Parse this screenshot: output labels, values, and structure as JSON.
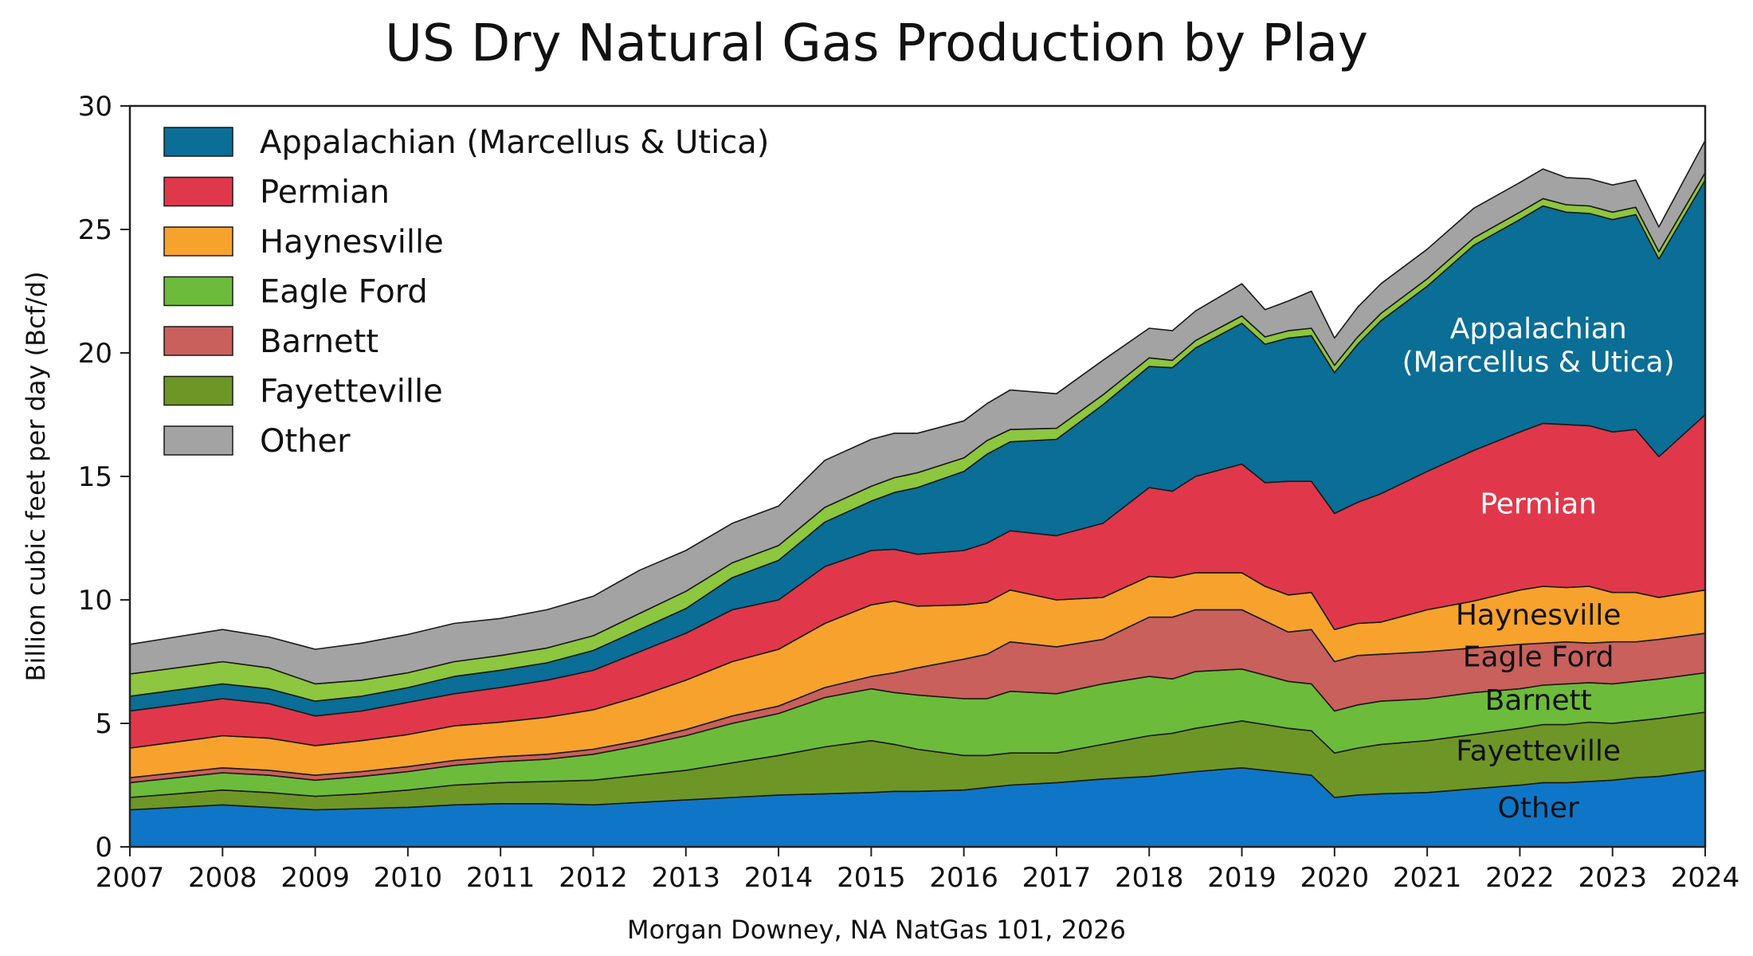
{
  "chart_data": {
    "type": "area",
    "stacked": true,
    "title": "US Dry Natural Gas Production by Play",
    "ylabel": "Billion cubic feet per day (Bcf/d)",
    "xlabel": "",
    "caption": "Morgan Downey, NA NatGas 101, 2026",
    "xlim": [
      2007,
      2024
    ],
    "ylim": [
      0,
      30
    ],
    "x_ticks": [
      2007,
      2008,
      2009,
      2010,
      2011,
      2012,
      2013,
      2014,
      2015,
      2016,
      2017,
      2018,
      2019,
      2020,
      2021,
      2022,
      2023,
      2024
    ],
    "y_ticks": [
      0,
      5,
      10,
      15,
      20,
      25,
      30
    ],
    "grid": false,
    "legend_position": "top-left",
    "x": [
      2007,
      2007.5,
      2008,
      2008.5,
      2009,
      2009.5,
      2010,
      2010.5,
      2011,
      2011.5,
      2012,
      2012.5,
      2013,
      2013.5,
      2014,
      2014.5,
      2015,
      2015.25,
      2015.5,
      2016,
      2016.25,
      2016.5,
      2017,
      2017.5,
      2018,
      2018.25,
      2018.5,
      2019,
      2019.25,
      2019.5,
      2019.75,
      2020,
      2020.25,
      2020.5,
      2021,
      2021.5,
      2022,
      2022.25,
      2022.5,
      2022.75,
      2023,
      2023.25,
      2023.5,
      2024
    ],
    "series": [
      {
        "name": "Other",
        "color": "#0f76c7",
        "values": [
          1.5,
          1.6,
          1.7,
          1.6,
          1.5,
          1.55,
          1.6,
          1.7,
          1.75,
          1.75,
          1.7,
          1.8,
          1.9,
          2.0,
          2.1,
          2.15,
          2.2,
          2.25,
          2.25,
          2.3,
          2.4,
          2.5,
          2.6,
          2.75,
          2.85,
          2.95,
          3.05,
          3.2,
          3.1,
          3.0,
          2.9,
          2.0,
          2.1,
          2.15,
          2.2,
          2.35,
          2.5,
          2.6,
          2.6,
          2.65,
          2.7,
          2.8,
          2.85,
          3.1
        ]
      },
      {
        "name": "Fayetteville",
        "color": "#6e9626",
        "values": [
          0.5,
          0.55,
          0.6,
          0.6,
          0.55,
          0.6,
          0.7,
          0.8,
          0.85,
          0.9,
          1.0,
          1.1,
          1.2,
          1.4,
          1.6,
          1.9,
          2.1,
          1.9,
          1.7,
          1.4,
          1.3,
          1.3,
          1.2,
          1.4,
          1.65,
          1.65,
          1.75,
          1.9,
          1.85,
          1.8,
          1.8,
          1.8,
          1.9,
          2.0,
          2.1,
          2.2,
          2.3,
          2.35,
          2.35,
          2.4,
          2.3,
          2.3,
          2.35,
          2.35
        ]
      },
      {
        "name": "Eagle Ford",
        "color": "#6dbb3b",
        "values": [
          0.6,
          0.65,
          0.7,
          0.7,
          0.65,
          0.7,
          0.75,
          0.8,
          0.85,
          0.9,
          1.05,
          1.2,
          1.4,
          1.6,
          1.7,
          2.0,
          2.1,
          2.1,
          2.2,
          2.3,
          2.3,
          2.5,
          2.4,
          2.45,
          2.4,
          2.2,
          2.3,
          2.1,
          2.0,
          1.9,
          1.9,
          1.7,
          1.75,
          1.75,
          1.7,
          1.7,
          1.6,
          1.6,
          1.65,
          1.6,
          1.6,
          1.6,
          1.6,
          1.6
        ]
      },
      {
        "name": "Barnett",
        "color": "#c9605c",
        "values": [
          0.2,
          0.2,
          0.2,
          0.2,
          0.2,
          0.2,
          0.2,
          0.2,
          0.2,
          0.2,
          0.2,
          0.2,
          0.25,
          0.3,
          0.3,
          0.4,
          0.5,
          0.8,
          1.1,
          1.6,
          1.8,
          2.0,
          1.9,
          1.8,
          2.4,
          2.5,
          2.5,
          2.4,
          2.2,
          2.0,
          2.2,
          2.0,
          2.0,
          1.9,
          1.9,
          1.8,
          1.8,
          1.7,
          1.7,
          1.6,
          1.7,
          1.6,
          1.6,
          1.6
        ]
      },
      {
        "name": "Haynesville",
        "color": "#f7a22c",
        "values": [
          1.2,
          1.25,
          1.3,
          1.3,
          1.2,
          1.25,
          1.3,
          1.4,
          1.4,
          1.5,
          1.6,
          1.8,
          2.0,
          2.2,
          2.3,
          2.6,
          2.9,
          2.9,
          2.5,
          2.2,
          2.1,
          2.1,
          1.9,
          1.7,
          1.65,
          1.6,
          1.5,
          1.5,
          1.4,
          1.5,
          1.5,
          1.3,
          1.3,
          1.3,
          1.7,
          1.9,
          2.2,
          2.3,
          2.2,
          2.3,
          2.0,
          2.0,
          1.7,
          1.75
        ]
      },
      {
        "name": "Permian",
        "color": "#e0384a",
        "values": [
          1.5,
          1.5,
          1.5,
          1.4,
          1.2,
          1.2,
          1.3,
          1.3,
          1.4,
          1.5,
          1.6,
          1.8,
          1.9,
          2.1,
          2.0,
          2.3,
          2.2,
          2.1,
          2.1,
          2.2,
          2.4,
          2.4,
          2.6,
          3.0,
          3.6,
          3.5,
          3.9,
          4.4,
          4.2,
          4.6,
          4.5,
          4.7,
          4.9,
          5.2,
          5.6,
          6.1,
          6.4,
          6.6,
          6.6,
          6.5,
          6.5,
          6.6,
          5.7,
          7.1
        ]
      },
      {
        "name": "Appalachian (Marcellus & Utica)",
        "color": "#0a6e96",
        "values": [
          0.6,
          0.6,
          0.6,
          0.6,
          0.6,
          0.6,
          0.6,
          0.7,
          0.7,
          0.7,
          0.8,
          0.9,
          1.0,
          1.3,
          1.6,
          1.8,
          2.0,
          2.3,
          2.7,
          3.2,
          3.6,
          3.6,
          3.9,
          4.8,
          4.9,
          5.0,
          5.2,
          5.7,
          5.6,
          5.8,
          5.9,
          5.7,
          6.4,
          7.0,
          7.5,
          8.3,
          8.6,
          8.8,
          8.6,
          8.6,
          8.6,
          8.7,
          8.0,
          9.5
        ]
      },
      {
        "name": "Fayetteville (upper band)",
        "color": "#8dc63f",
        "values": [
          0.9,
          0.9,
          0.9,
          0.85,
          0.7,
          0.65,
          0.6,
          0.6,
          0.6,
          0.6,
          0.6,
          0.65,
          0.7,
          0.6,
          0.6,
          0.6,
          0.6,
          0.6,
          0.6,
          0.55,
          0.55,
          0.5,
          0.45,
          0.4,
          0.35,
          0.3,
          0.3,
          0.3,
          0.3,
          0.3,
          0.3,
          0.3,
          0.3,
          0.3,
          0.3,
          0.3,
          0.3,
          0.3,
          0.3,
          0.3,
          0.3,
          0.3,
          0.3,
          0.3
        ]
      },
      {
        "name": "Other (top band)",
        "color": "#a3a3a3",
        "values": [
          1.2,
          1.25,
          1.3,
          1.25,
          1.4,
          1.5,
          1.55,
          1.55,
          1.5,
          1.55,
          1.6,
          1.75,
          1.65,
          1.6,
          1.6,
          1.9,
          1.9,
          1.8,
          1.6,
          1.5,
          1.5,
          1.6,
          1.4,
          1.4,
          1.2,
          1.2,
          1.2,
          1.3,
          1.1,
          1.2,
          1.5,
          1.1,
          1.2,
          1.2,
          1.2,
          1.2,
          1.2,
          1.2,
          1.1,
          1.1,
          1.1,
          1.1,
          1.0,
          1.3
        ]
      }
    ],
    "legend": [
      {
        "label": "Appalachian (Marcellus & Utica)",
        "color": "#0a6e96"
      },
      {
        "label": "Permian",
        "color": "#e0384a"
      },
      {
        "label": "Haynesville",
        "color": "#f7a22c"
      },
      {
        "label": "Eagle Ford",
        "color": "#6dbb3b"
      },
      {
        "label": "Barnett",
        "color": "#c9605c"
      },
      {
        "label": "Fayetteville",
        "color": "#6e9626"
      },
      {
        "label": "Other",
        "color": "#a3a3a3"
      }
    ],
    "annotations": [
      {
        "lines": [
          "Appalachian",
          "(Marcellus & Utica)"
        ],
        "x": 2022.2,
        "y": 20.6,
        "color": "#ffffff"
      },
      {
        "lines": [
          "Permian"
        ],
        "x": 2022.2,
        "y": 13.5,
        "color": "#ffffff"
      },
      {
        "lines": [
          "Haynesville"
        ],
        "x": 2022.2,
        "y": 9.0,
        "color": "#111111"
      },
      {
        "lines": [
          "Eagle Ford"
        ],
        "x": 2022.2,
        "y": 7.3,
        "color": "#111111"
      },
      {
        "lines": [
          "Barnett"
        ],
        "x": 2022.2,
        "y": 5.55,
        "color": "#111111"
      },
      {
        "lines": [
          "Fayetteville"
        ],
        "x": 2022.2,
        "y": 3.5,
        "color": "#111111"
      },
      {
        "lines": [
          "Other"
        ],
        "x": 2022.2,
        "y": 1.2,
        "color": "#111111"
      }
    ]
  }
}
